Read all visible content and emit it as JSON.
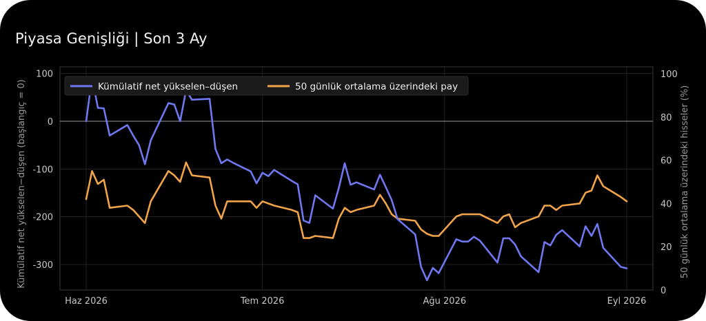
{
  "title": "Piyasa Genişliği | Son 3 Ay",
  "chart_data": {
    "type": "line",
    "x_ticks": [
      "Haz 2026",
      "Tem 2026",
      "Ağu 2026",
      "Eyl 2026"
    ],
    "x_tick_days": [
      0,
      30,
      61,
      92
    ],
    "y_left": {
      "label": "Kümülatif net yükselen−düşen (başlangıç = 0)",
      "ticks": [
        100,
        0,
        -100,
        -200,
        -300
      ],
      "range": [
        -355,
        100
      ],
      "reference_line": 0
    },
    "y_right": {
      "label": "50 günlük ortalama üzerindeki hisseler (%)",
      "ticks": [
        100,
        80,
        60,
        40,
        20,
        0
      ],
      "range": [
        0,
        100
      ]
    },
    "grid": true,
    "legend_position": "top-left",
    "series": [
      {
        "name": "Kümülatif net yükselen–düşen",
        "axis": "left",
        "color": "#6f78f0",
        "x": [
          "2026-06-01",
          "2026-06-02",
          "2026-06-03",
          "2026-06-04",
          "2026-06-05",
          "2026-06-08",
          "2026-06-09",
          "2026-06-10",
          "2026-06-11",
          "2026-06-12",
          "2026-06-15",
          "2026-06-16",
          "2026-06-17",
          "2026-06-18",
          "2026-06-19",
          "2026-06-22",
          "2026-06-23",
          "2026-06-24",
          "2026-06-25",
          "2026-06-26",
          "2026-06-29",
          "2026-06-30",
          "2026-07-01",
          "2026-07-02",
          "2026-07-03",
          "2026-07-06",
          "2026-07-07",
          "2026-07-08",
          "2026-07-09",
          "2026-07-10",
          "2026-07-13",
          "2026-07-14",
          "2026-07-15",
          "2026-07-16",
          "2026-07-17",
          "2026-07-20",
          "2026-07-21",
          "2026-07-22",
          "2026-07-23",
          "2026-07-24",
          "2026-07-27",
          "2026-07-28",
          "2026-07-29",
          "2026-07-30",
          "2026-07-31",
          "2026-08-03",
          "2026-08-04",
          "2026-08-05",
          "2026-08-06",
          "2026-08-07",
          "2026-08-10",
          "2026-08-11",
          "2026-08-12",
          "2026-08-13",
          "2026-08-14",
          "2026-08-17",
          "2026-08-18",
          "2026-08-19",
          "2026-08-20",
          "2026-08-21",
          "2026-08-24",
          "2026-08-25",
          "2026-08-26",
          "2026-08-27",
          "2026-08-28",
          "2026-08-31",
          "2026-09-01"
        ],
        "values": [
          0,
          92,
          28,
          27,
          -30,
          -8,
          -30,
          -50,
          -90,
          -40,
          38,
          35,
          0,
          65,
          45,
          47,
          -58,
          -88,
          -80,
          -87,
          -105,
          -130,
          -108,
          -115,
          -102,
          -125,
          -132,
          -208,
          -213,
          -155,
          -183,
          -140,
          -88,
          -133,
          -128,
          -143,
          -112,
          -138,
          -165,
          -205,
          -237,
          -305,
          -333,
          -307,
          -318,
          -247,
          -252,
          -252,
          -242,
          -250,
          -296,
          -245,
          -245,
          -258,
          -283,
          -316,
          -253,
          -260,
          -238,
          -228,
          -262,
          -220,
          -240,
          -215,
          -265,
          -305,
          -308
        ]
      },
      {
        "name": "50 günlük ortalama üzerindeki pay",
        "axis": "right",
        "color": "#f1a44a",
        "x": [
          "2026-06-01",
          "2026-06-02",
          "2026-06-03",
          "2026-06-04",
          "2026-06-05",
          "2026-06-08",
          "2026-06-09",
          "2026-06-10",
          "2026-06-11",
          "2026-06-12",
          "2026-06-15",
          "2026-06-16",
          "2026-06-17",
          "2026-06-18",
          "2026-06-19",
          "2026-06-22",
          "2026-06-23",
          "2026-06-24",
          "2026-06-25",
          "2026-06-26",
          "2026-06-29",
          "2026-06-30",
          "2026-07-01",
          "2026-07-02",
          "2026-07-03",
          "2026-07-06",
          "2026-07-07",
          "2026-07-08",
          "2026-07-09",
          "2026-07-10",
          "2026-07-13",
          "2026-07-14",
          "2026-07-15",
          "2026-07-16",
          "2026-07-17",
          "2026-07-20",
          "2026-07-21",
          "2026-07-22",
          "2026-07-23",
          "2026-07-24",
          "2026-07-27",
          "2026-07-28",
          "2026-07-29",
          "2026-07-30",
          "2026-07-31",
          "2026-08-03",
          "2026-08-04",
          "2026-08-05",
          "2026-08-06",
          "2026-08-07",
          "2026-08-10",
          "2026-08-11",
          "2026-08-12",
          "2026-08-13",
          "2026-08-14",
          "2026-08-17",
          "2026-08-18",
          "2026-08-19",
          "2026-08-20",
          "2026-08-21",
          "2026-08-24",
          "2026-08-25",
          "2026-08-26",
          "2026-08-27",
          "2026-08-28",
          "2026-08-31",
          "2026-09-01"
        ],
        "values": [
          42,
          55,
          49,
          51,
          38,
          39,
          37,
          34,
          31,
          41,
          55,
          53,
          50,
          59,
          53,
          52,
          39,
          33,
          41,
          41,
          41,
          38,
          41,
          40,
          39,
          37,
          36,
          24,
          24,
          25,
          24,
          33,
          38,
          36,
          37,
          39,
          44,
          40,
          35,
          33,
          32,
          28,
          26,
          25,
          25,
          34,
          35,
          35,
          35,
          35,
          31,
          34,
          35,
          29,
          31,
          34,
          39,
          39,
          37,
          39,
          40,
          45,
          46,
          53,
          48,
          43,
          41
        ]
      }
    ]
  }
}
